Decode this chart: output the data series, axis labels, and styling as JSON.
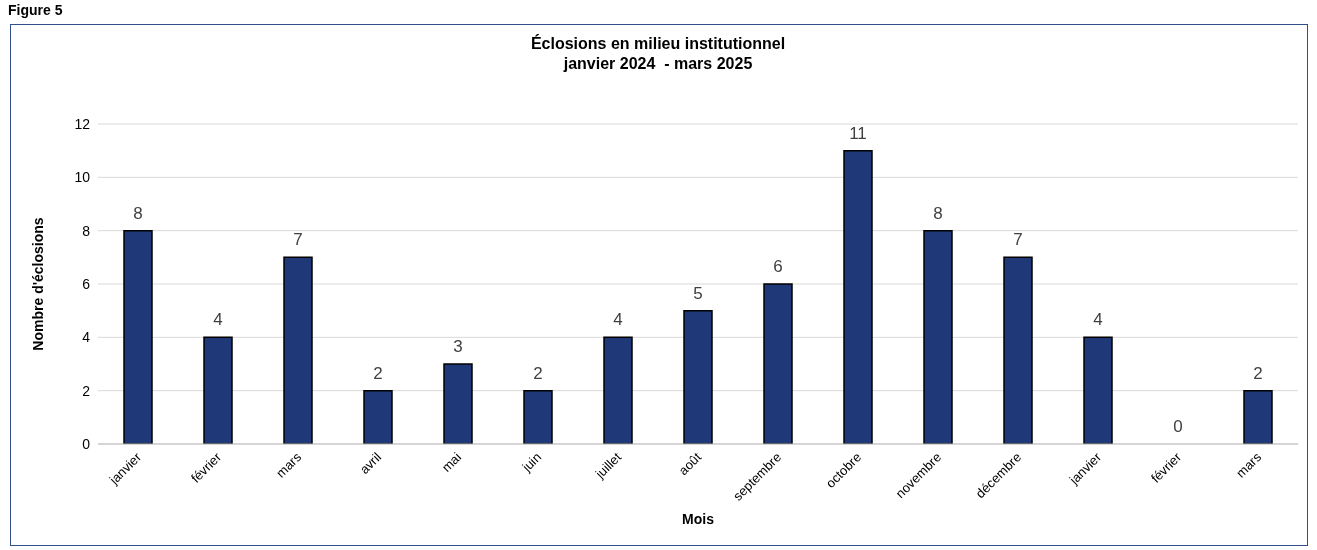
{
  "chart_data": {
    "type": "bar",
    "title": "Éclosions en milieu institutionnel\njanvier 2024  - mars 2025",
    "xlabel": "Mois",
    "ylabel": "Nombre d'éclosions",
    "annotations": [
      "Figure 5"
    ],
    "categories": [
      "janvier",
      "février",
      "mars",
      "avril",
      "mai",
      "juin",
      "juillet",
      "août",
      "septembre",
      "octobre",
      "novembre",
      "décembre",
      "janvier",
      "février",
      "mars"
    ],
    "values": [
      8,
      4,
      7,
      2,
      3,
      2,
      4,
      5,
      6,
      11,
      8,
      7,
      4,
      0,
      2
    ],
    "color": "#1f3877",
    "ylim": [
      0,
      12
    ],
    "yticks": [
      0,
      2,
      4,
      6,
      8,
      10,
      12
    ],
    "grid": "y",
    "data_labels": true
  }
}
